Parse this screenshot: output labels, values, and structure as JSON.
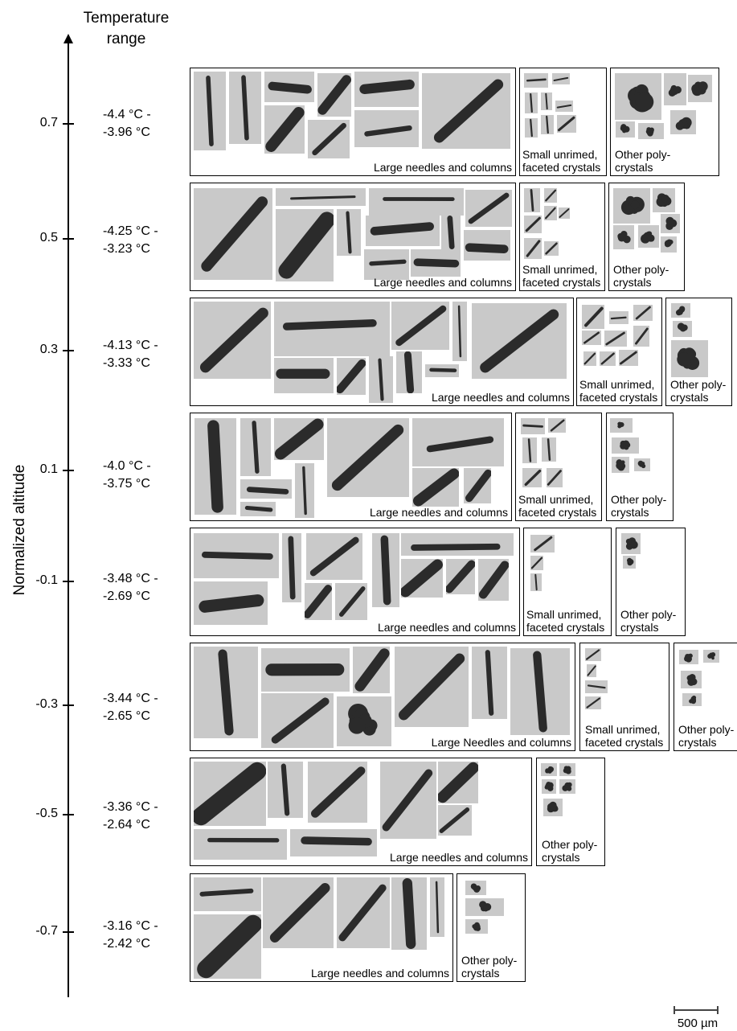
{
  "header": {
    "line1": "Temperature",
    "line2": "range"
  },
  "y_axis": {
    "title": "Normalized altitude",
    "ticks": [
      "0.7",
      "0.5",
      "0.3",
      "0.1",
      "-0.1",
      "-0.3",
      "-0.5",
      "-0.7"
    ]
  },
  "rows": [
    {
      "altitude": "0.7",
      "temp_line1": "-4.4 °C -",
      "temp_line2": "-3.96 °C",
      "large_caption": "Large needles and columns",
      "small_caption_1": "Small unrimed,",
      "small_caption_2": "faceted crystals",
      "other_caption_1": "Other poly-",
      "other_caption_2": "crystals"
    },
    {
      "altitude": "0.5",
      "temp_line1": "-4.25 °C -",
      "temp_line2": "-3.23 °C",
      "large_caption": "Large needles and columns",
      "small_caption_1": "Small unrimed,",
      "small_caption_2": "faceted crystals",
      "other_caption_1": "Other poly-",
      "other_caption_2": "crystals"
    },
    {
      "altitude": "0.3",
      "temp_line1": "-4.13 °C -",
      "temp_line2": "-3.33 °C",
      "large_caption": "Large needles and columns",
      "small_caption_1": "Small unrimed,",
      "small_caption_2": "faceted crystals",
      "other_caption_1": "Other poly-",
      "other_caption_2": "crystals"
    },
    {
      "altitude": "0.1",
      "temp_line1": "-4.0 °C -",
      "temp_line2": "-3.75 °C",
      "large_caption": "Large needles and columns",
      "small_caption_1": "Small unrimed,",
      "small_caption_2": "faceted crystals",
      "other_caption_1": "Other poly-",
      "other_caption_2": "crystals"
    },
    {
      "altitude": "-0.1",
      "temp_line1": "-3.48 °C -",
      "temp_line2": "-2.69 °C",
      "large_caption": "Large needles and columns",
      "small_caption_1": "Small unrimed,",
      "small_caption_2": "faceted crystals",
      "other_caption_1": "Other poly-",
      "other_caption_2": "crystals"
    },
    {
      "altitude": "-0.3",
      "temp_line1": "-3.44 °C -",
      "temp_line2": "-2.65 °C",
      "large_caption": "Large Needles and columns",
      "small_caption_1": "Small unrimed,",
      "small_caption_2": "faceted crystals",
      "other_caption_1": "Other poly-",
      "other_caption_2": "crystals"
    },
    {
      "altitude": "-0.5",
      "temp_line1": "-3.36 °C -",
      "temp_line2": "-2.64 °C",
      "large_caption": "Large needles and columns",
      "other_caption_1": "Other poly-",
      "other_caption_2": "crystals"
    },
    {
      "altitude": "-0.7",
      "temp_line1": "-3.16 °C -",
      "temp_line2": "-2.42 °C",
      "large_caption": "Large needles and columns",
      "other_caption_1": "Other poly-",
      "other_caption_2": "crystals"
    }
  ],
  "scale": {
    "label": "500 µm"
  },
  "colors": {
    "photo_bg": "#c9c9c9",
    "crystal": "#2b2b2b",
    "box_border": "#000000"
  }
}
